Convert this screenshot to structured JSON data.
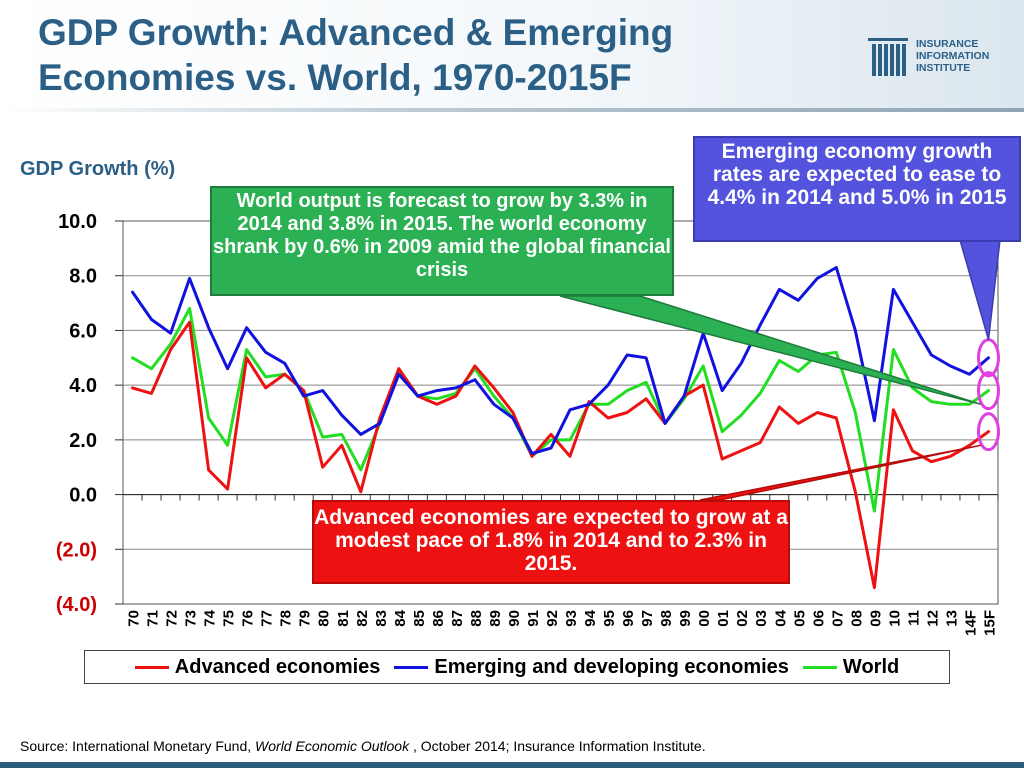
{
  "header": {
    "title_line1": "GDP Growth: Advanced & Emerging",
    "title_line2": "Economies vs. World, 1970-2015F",
    "logo_line1": "INSURANCE",
    "logo_line2": "INFORMATION",
    "logo_line3": "INSTITUTE"
  },
  "callouts": {
    "world": "World output is forecast to grow by 3.3% in 2014 and 3.8% in 2015.  The world economy shrank by 0.6% in 2009 amid the global financial crisis",
    "emerging": "Emerging economy growth rates are expected to ease to 4.4% in 2014 and 5.0% in 2015",
    "advanced": "Advanced economies are expected to grow at a modest pace of 1.8% in 2014 and to 2.3% in 2015."
  },
  "legend": {
    "advanced": "Advanced economies",
    "emerging": "Emerging and developing economies",
    "world": "World"
  },
  "source": {
    "prefix": "Source: International Monetary Fund, ",
    "publication": "World Economic Outlook",
    "suffix": " , October 2014; Insurance Information Institute."
  },
  "colors": {
    "title": "#2b5f86",
    "advanced": "#ee1111",
    "emerging": "#1212e0",
    "world": "#22dd22",
    "highlight": "#e040e0"
  },
  "chart_data": {
    "type": "line",
    "title": "GDP Growth: Advanced & Emerging Economies vs. World, 1970-2015F",
    "ylabel": "GDP Growth (%)",
    "xlabel": "",
    "ylim": [
      -4,
      10
    ],
    "yticks": [
      {
        "value": 10,
        "label": "10.0"
      },
      {
        "value": 8,
        "label": "8.0"
      },
      {
        "value": 6,
        "label": "6.0"
      },
      {
        "value": 4,
        "label": "4.0"
      },
      {
        "value": 2,
        "label": "2.0"
      },
      {
        "value": 0,
        "label": "0.0"
      },
      {
        "value": -2,
        "label": "(2.0)"
      },
      {
        "value": -4,
        "label": "(4.0)"
      }
    ],
    "categories": [
      "70",
      "71",
      "72",
      "73",
      "74",
      "75",
      "76",
      "77",
      "78",
      "79",
      "80",
      "81",
      "82",
      "83",
      "84",
      "85",
      "86",
      "87",
      "88",
      "89",
      "90",
      "91",
      "92",
      "93",
      "94",
      "95",
      "96",
      "97",
      "98",
      "99",
      "00",
      "01",
      "02",
      "03",
      "04",
      "05",
      "06",
      "07",
      "08",
      "09",
      "10",
      "11",
      "12",
      "13",
      "14F",
      "15F"
    ],
    "series": [
      {
        "name": "Advanced economies",
        "color": "#ee1111",
        "values": [
          3.9,
          3.7,
          5.3,
          6.3,
          0.9,
          0.2,
          5.0,
          3.9,
          4.4,
          3.8,
          1.0,
          1.8,
          0.1,
          2.8,
          4.6,
          3.6,
          3.3,
          3.6,
          4.7,
          3.9,
          3.0,
          1.4,
          2.2,
          1.4,
          3.4,
          2.8,
          3.0,
          3.5,
          2.6,
          3.6,
          4.0,
          1.3,
          1.6,
          1.9,
          3.2,
          2.6,
          3.0,
          2.8,
          0.1,
          -3.4,
          3.1,
          1.6,
          1.2,
          1.4,
          1.8,
          2.3
        ]
      },
      {
        "name": "Emerging and developing economies",
        "color": "#1212e0",
        "values": [
          7.4,
          6.4,
          5.9,
          7.9,
          6.1,
          4.6,
          6.1,
          5.2,
          4.8,
          3.6,
          3.8,
          2.9,
          2.2,
          2.6,
          4.4,
          3.6,
          3.8,
          3.9,
          4.2,
          3.3,
          2.8,
          1.5,
          1.7,
          3.1,
          3.3,
          4.0,
          5.1,
          5.0,
          2.6,
          3.6,
          5.9,
          3.8,
          4.8,
          6.2,
          7.5,
          7.1,
          7.9,
          8.3,
          6.0,
          2.7,
          7.5,
          6.3,
          5.1,
          4.7,
          4.4,
          5.0
        ]
      },
      {
        "name": "World",
        "color": "#22dd22",
        "values": [
          5.0,
          4.6,
          5.5,
          6.8,
          2.8,
          1.8,
          5.3,
          4.3,
          4.4,
          3.8,
          2.1,
          2.2,
          0.9,
          2.6,
          4.6,
          3.6,
          3.5,
          3.7,
          4.6,
          3.6,
          2.8,
          1.4,
          2.0,
          2.0,
          3.3,
          3.3,
          3.8,
          4.1,
          2.6,
          3.5,
          4.7,
          2.3,
          2.9,
          3.7,
          4.9,
          4.5,
          5.1,
          5.2,
          3.0,
          -0.6,
          5.3,
          3.9,
          3.4,
          3.3,
          3.3,
          3.8
        ]
      }
    ],
    "legend_position": "bottom",
    "grid": "horizontal"
  }
}
